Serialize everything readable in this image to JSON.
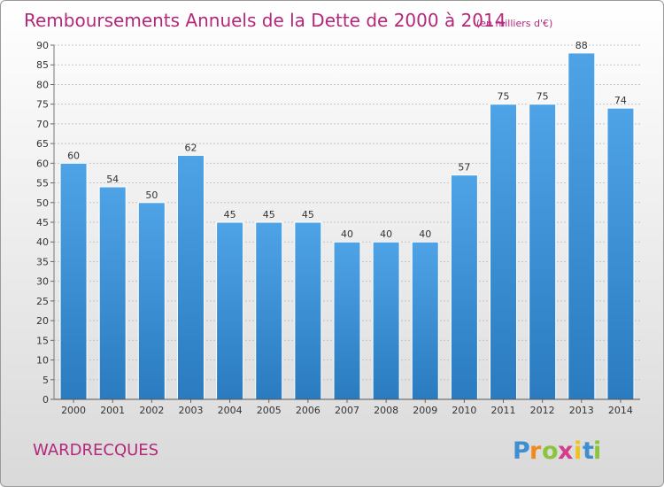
{
  "chart_data": {
    "type": "bar",
    "title": "Remboursements Annuels de la Dette de 2000 à 2014",
    "subtitle": "(en milliers d'€)",
    "categories": [
      "2000",
      "2001",
      "2002",
      "2003",
      "2004",
      "2005",
      "2006",
      "2007",
      "2008",
      "2009",
      "2010",
      "2011",
      "2012",
      "2013",
      "2014"
    ],
    "values": [
      60,
      54,
      50,
      62,
      45,
      45,
      45,
      40,
      40,
      40,
      57,
      75,
      75,
      88,
      74
    ],
    "ylim": [
      0,
      90
    ],
    "ytick_step": 5,
    "grid": true,
    "bar_color": "#4ea3e6",
    "bar_color_dark": "#2a7bbf"
  },
  "footer": {
    "commune": "WARDRECQUES",
    "logo": {
      "letters": [
        "P",
        "r",
        "o",
        "x",
        "i",
        "t",
        "i"
      ],
      "colors": [
        "#3d8fd1",
        "#f08a1e",
        "#8cc43e",
        "#d63c8c",
        "#f0c21e",
        "#3d8fd1",
        "#8cc43e"
      ]
    }
  }
}
